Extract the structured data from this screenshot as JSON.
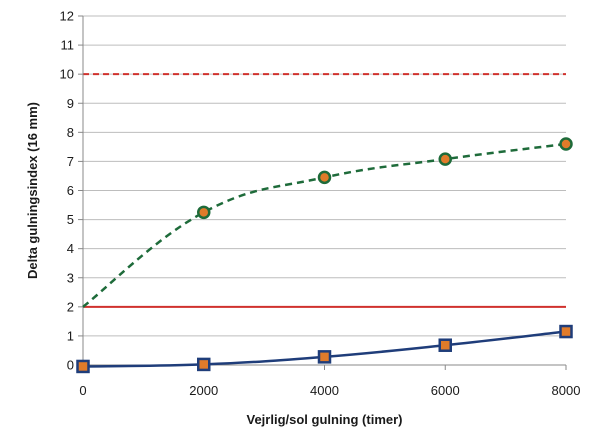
{
  "chart_data": {
    "type": "line",
    "xlabel": "Vejrlig/sol gulning (timer)",
    "ylabel": "Delta gulningsindex (16 mm)",
    "xlim": [
      0,
      8000
    ],
    "ylim": [
      0,
      12
    ],
    "x_ticks": [
      "0",
      "2000",
      "4000",
      "6000",
      "8000"
    ],
    "y_ticks": [
      "0",
      "1",
      "2",
      "3",
      "4",
      "5",
      "6",
      "7",
      "8",
      "9",
      "10",
      "11",
      "12"
    ],
    "grid": "horizontal",
    "legend": "none",
    "series": [
      {
        "marker": "circle",
        "line_style": "dashed",
        "color": "#1e6b3a",
        "marker_fill": "#e07b2a",
        "points": [
          {
            "x": 0,
            "y": 2.0,
            "marker": false
          },
          {
            "x": 2000,
            "y": 5.25,
            "marker": true
          },
          {
            "x": 4000,
            "y": 6.45,
            "marker": true
          },
          {
            "x": 6000,
            "y": 7.08,
            "marker": true
          },
          {
            "x": 8000,
            "y": 7.6,
            "marker": true
          }
        ]
      },
      {
        "marker": "square",
        "line_style": "solid",
        "color": "#1f3d7a",
        "marker_fill": "#e07b2a",
        "points": [
          {
            "x": 0,
            "y": -0.05,
            "marker": true
          },
          {
            "x": 2000,
            "y": 0.02,
            "marker": true
          },
          {
            "x": 4000,
            "y": 0.28,
            "marker": true
          },
          {
            "x": 6000,
            "y": 0.68,
            "marker": true
          },
          {
            "x": 8000,
            "y": 1.15,
            "marker": true
          }
        ]
      }
    ],
    "reference_lines": [
      {
        "y": 10,
        "style": "dashed",
        "color": "#d0312d"
      },
      {
        "y": 2,
        "style": "solid",
        "color": "#d0312d"
      }
    ]
  }
}
